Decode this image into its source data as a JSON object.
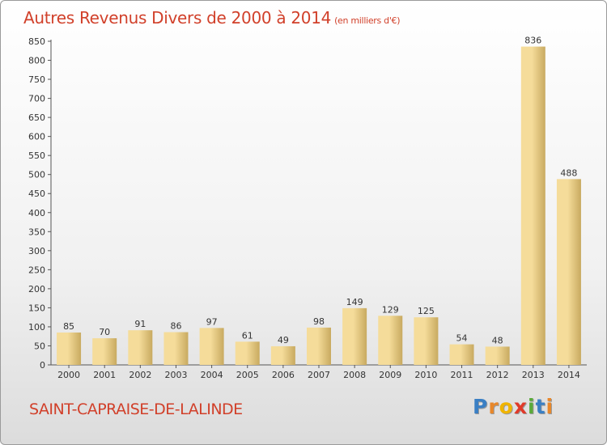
{
  "title": "Autres Revenus Divers de 2000 à 2014",
  "title_unit": "(en milliers d'€)",
  "place": "SAINT-CAPRAISE-DE-LALINDE",
  "brand": {
    "letters": [
      "P",
      "r",
      "o",
      "x",
      "i",
      "t",
      "i"
    ],
    "colors": [
      "#3a7fc4",
      "#e8872a",
      "#f0b400",
      "#e03a2a",
      "#5aaa3a",
      "#3a7fc4",
      "#e8872a"
    ]
  },
  "colors": {
    "title": "#d1402a",
    "bar_light": "#f5dc9a",
    "bar_dark": "#c8aa60"
  },
  "chart_data": {
    "type": "bar",
    "title": "Autres Revenus Divers de 2000 à 2014",
    "xlabel": "",
    "ylabel": "en milliers d'€",
    "categories": [
      "2000",
      "2001",
      "2002",
      "2003",
      "2004",
      "2005",
      "2006",
      "2007",
      "2008",
      "2009",
      "2010",
      "2011",
      "2012",
      "2013",
      "2014"
    ],
    "values": [
      85,
      70,
      91,
      86,
      97,
      61,
      49,
      98,
      149,
      129,
      125,
      54,
      48,
      836,
      488
    ],
    "ylim": [
      0,
      850
    ],
    "yticks": [
      0,
      50,
      100,
      150,
      200,
      250,
      300,
      350,
      400,
      450,
      500,
      550,
      600,
      650,
      700,
      750,
      800,
      850
    ],
    "grid": false
  }
}
